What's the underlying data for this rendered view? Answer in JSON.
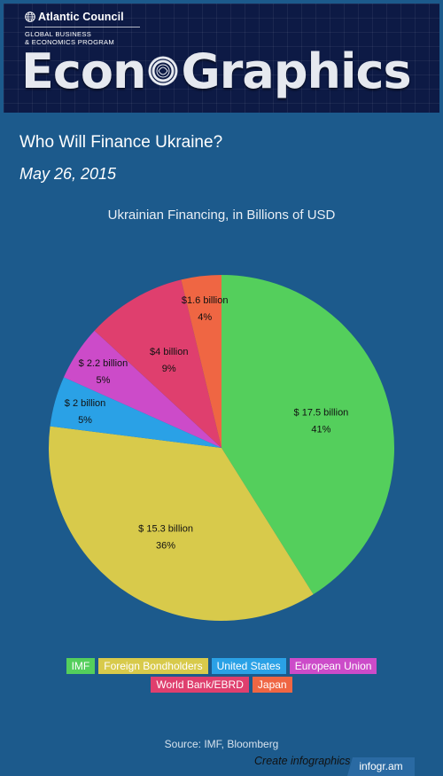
{
  "banner": {
    "org": "Atlantic Council",
    "program_line1": "GLOBAL BUSINESS",
    "program_line2": "& ECONOMICS PROGRAM",
    "title_part1": "Econ",
    "title_part2": "Graphics"
  },
  "page_title": "Who Will Finance Ukraine?",
  "date": "May 26, 2015",
  "chart_data": {
    "type": "pie",
    "title": "Ukrainian Financing, in Billions of USD",
    "slices": [
      {
        "name": "IMF",
        "value": 17.5,
        "label": "$ 17.5 billion",
        "pct": "41%",
        "color": "#54cf5c"
      },
      {
        "name": "Foreign Bondholders",
        "value": 15.3,
        "label": "$ 15.3 billion",
        "pct": "36%",
        "color": "#d8ca4b"
      },
      {
        "name": "United States",
        "value": 2.0,
        "label": "$ 2 billion",
        "pct": "5%",
        "color": "#2aa1e6"
      },
      {
        "name": "European Union",
        "value": 2.2,
        "label": "$ 2.2 billion",
        "pct": "5%",
        "color": "#cc4bc9"
      },
      {
        "name": "World Bank/EBRD",
        "value": 4.0,
        "label": "$4 billion",
        "pct": "9%",
        "color": "#df3f6e"
      },
      {
        "name": "Japan",
        "value": 1.6,
        "label": "$1.6 billion",
        "pct": "4%",
        "color": "#ef6643"
      }
    ],
    "legend_position": "bottom"
  },
  "source": "Source: IMF, Bloomberg",
  "footer": {
    "create": "Create infographics",
    "brand": "infogr.am"
  }
}
